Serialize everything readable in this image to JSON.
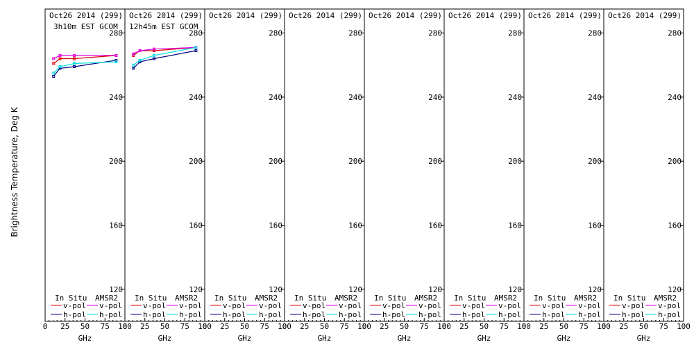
{
  "chart_data": {
    "type": "line",
    "ylabel": "Brightness Temperature, Deg K",
    "xlabel": "GHz",
    "xlim": [
      0,
      100
    ],
    "ylim": [
      100,
      295
    ],
    "x_ticks": [
      "0",
      "25",
      "50",
      "75",
      "100"
    ],
    "y_ticks": [
      120,
      160,
      200,
      240,
      280
    ],
    "legend": {
      "header_left": "In Situ",
      "header_right": "AMSR2",
      "entries": [
        {
          "label": "v-pol",
          "color": "#dd0000"
        },
        {
          "label": "v-pol",
          "color": "#dd00dd"
        },
        {
          "label": "h-pol",
          "color": "#000088"
        },
        {
          "label": "h-pol",
          "color": "#00dddd"
        }
      ]
    },
    "panels": [
      {
        "title": "Oct26 2014 (299)",
        "subtitle": "3h10m EST GCOM",
        "series": [
          {
            "name": "In Situ v-pol",
            "color": "#dd0000",
            "x": [
              10.65,
              18.7,
              36.5,
              89
            ],
            "y": [
              261,
              264,
              264,
              266
            ]
          },
          {
            "name": "AMSR2 v-pol",
            "color": "#dd00dd",
            "x": [
              10.65,
              18.7,
              36.5,
              89
            ],
            "y": [
              264,
              266,
              266,
              266
            ]
          },
          {
            "name": "In Situ h-pol",
            "color": "#000088",
            "x": [
              10.65,
              18.7,
              36.5,
              89
            ],
            "y": [
              253,
              258,
              259,
              263
            ]
          },
          {
            "name": "AMSR2 h-pol",
            "color": "#00dddd",
            "x": [
              10.65,
              18.7,
              36.5,
              89
            ],
            "y": [
              255,
              259,
              261,
              262
            ]
          }
        ]
      },
      {
        "title": "Oct26 2014 (299)",
        "subtitle": "12h45m EST GCOM",
        "series": [
          {
            "name": "In Situ v-pol",
            "color": "#dd0000",
            "x": [
              10.65,
              18.7,
              36.5,
              89
            ],
            "y": [
              266,
              269,
              269,
              271
            ]
          },
          {
            "name": "AMSR2 v-pol",
            "color": "#dd00dd",
            "x": [
              10.65,
              18.7,
              36.5,
              89
            ],
            "y": [
              267,
              269,
              270,
              271
            ]
          },
          {
            "name": "In Situ h-pol",
            "color": "#000088",
            "x": [
              10.65,
              18.7,
              36.5,
              89
            ],
            "y": [
              258,
              262,
              264,
              269
            ]
          },
          {
            "name": "AMSR2 h-pol",
            "color": "#00dddd",
            "x": [
              10.65,
              18.7,
              36.5,
              89
            ],
            "y": [
              260,
              263,
              266,
              271
            ]
          }
        ]
      },
      {
        "title": "Oct26 2014 (299)",
        "subtitle": "",
        "series": []
      },
      {
        "title": "Oct26 2014 (299)",
        "subtitle": "",
        "series": []
      },
      {
        "title": "Oct26 2014 (299)",
        "subtitle": "",
        "series": []
      },
      {
        "title": "Oct26 2014 (299)",
        "subtitle": "",
        "series": []
      },
      {
        "title": "Oct26 2014 (299)",
        "subtitle": "",
        "series": []
      },
      {
        "title": "Oct26 2014 (299)",
        "subtitle": "",
        "series": []
      }
    ]
  }
}
